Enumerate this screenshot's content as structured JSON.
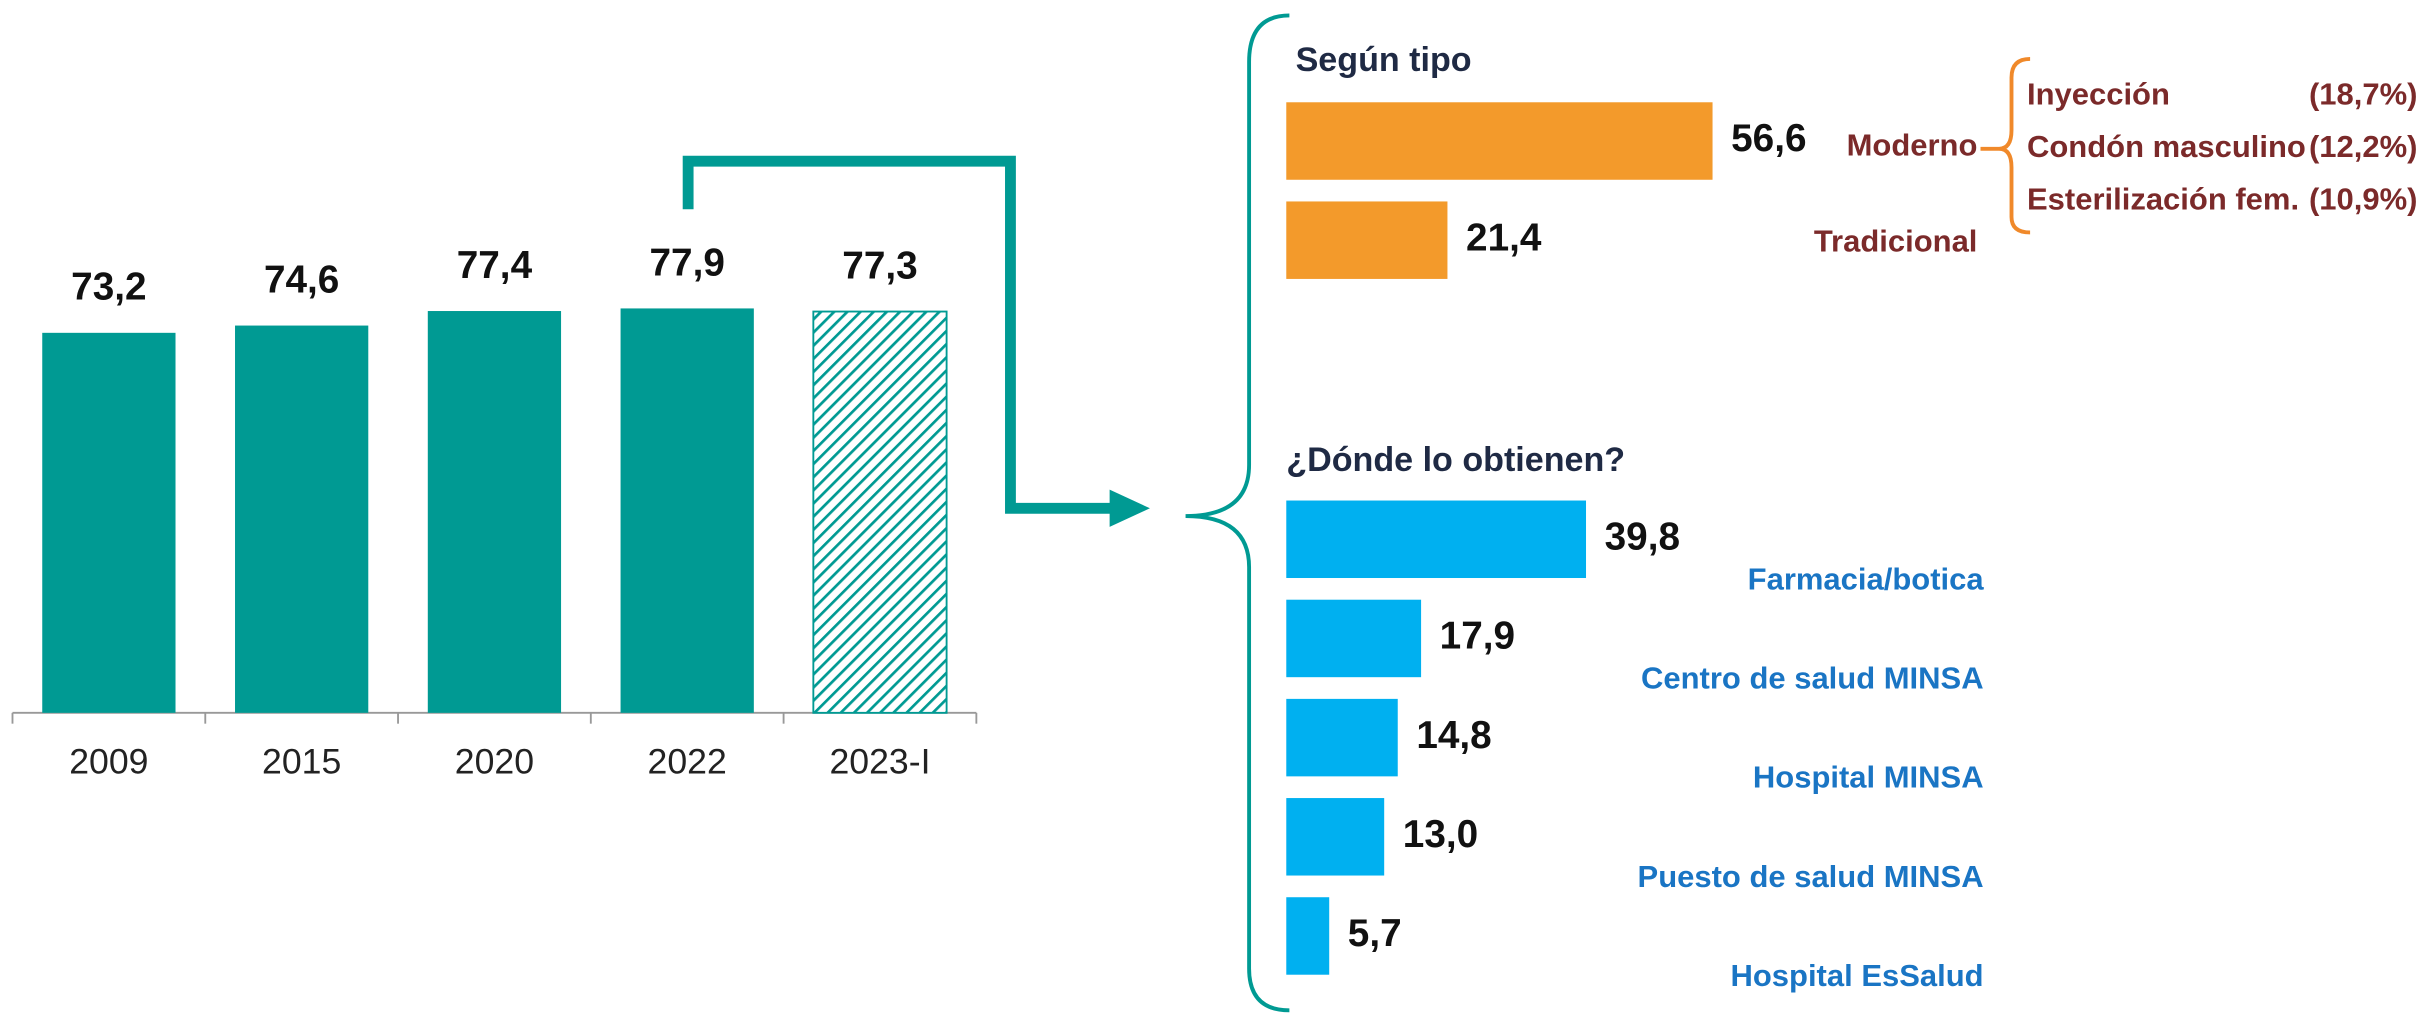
{
  "chart_data": [
    {
      "type": "bar",
      "categories": [
        "2009",
        "2015",
        "2020",
        "2022",
        "2023-I"
      ],
      "values": [
        73.2,
        74.6,
        77.4,
        77.9,
        77.3
      ],
      "value_labels": [
        "73,2",
        "74,6",
        "77,4",
        "77,9",
        "77,3"
      ],
      "patterns": [
        "solid",
        "solid",
        "solid",
        "solid",
        "hatched"
      ],
      "color": "#009a93",
      "ylim": [
        0,
        80
      ]
    },
    {
      "type": "barh",
      "title": "Según tipo",
      "categories": [
        "Moderno",
        "Tradicional"
      ],
      "values": [
        56.6,
        21.4
      ],
      "value_labels": [
        "56,6",
        "21,4"
      ],
      "color": "#f39a2b",
      "label_color": "#7b2a2a",
      "xlim": [
        0,
        100
      ],
      "breakdown": [
        {
          "label": "Inyección",
          "share_label": "(18,7%)"
        },
        {
          "label": "Condón masculino",
          "share_label": "(12,2%)"
        },
        {
          "label": "Esterilización fem.",
          "share_label": "(10,9%)"
        }
      ]
    },
    {
      "type": "barh",
      "title": "¿Dónde lo obtienen?",
      "categories": [
        "Farmacia/botica",
        "Centro de salud MINSA",
        "Hospital MINSA",
        "Puesto de salud MINSA",
        "Hospital EsSalud"
      ],
      "values": [
        39.8,
        17.9,
        14.8,
        13.0,
        5.7
      ],
      "value_labels": [
        "39,8",
        "17,9",
        "14,8",
        "13,0",
        "5,7"
      ],
      "color": "#00b0f0",
      "label_color": "#1a75c4",
      "xlim": [
        0,
        100
      ]
    }
  ]
}
